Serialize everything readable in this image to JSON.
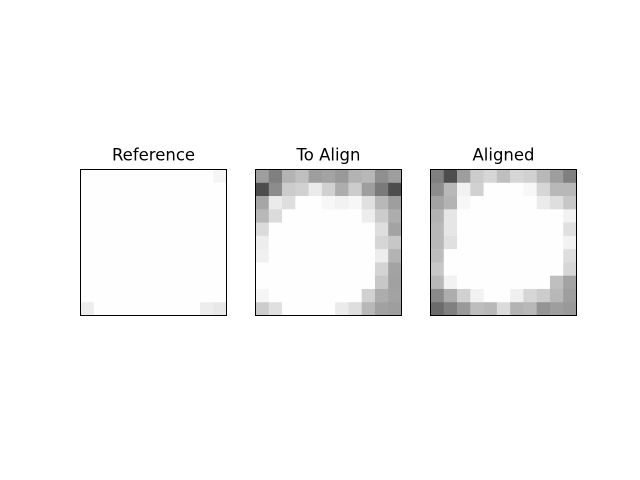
{
  "chart_data": [
    {
      "type": "heatmap",
      "title": "Reference",
      "colormap": "gray",
      "value_range": [
        0,
        1
      ],
      "rows": 11,
      "cols": 11,
      "values": [
        [
          0.995,
          0.995,
          0.995,
          0.995,
          0.995,
          0.995,
          0.995,
          0.995,
          0.995,
          0.995,
          0.96
        ],
        [
          0.995,
          0.995,
          0.995,
          0.995,
          0.995,
          0.995,
          0.995,
          0.995,
          0.995,
          0.995,
          0.995
        ],
        [
          0.995,
          0.995,
          0.995,
          0.995,
          0.995,
          0.995,
          0.995,
          0.995,
          0.995,
          0.995,
          0.995
        ],
        [
          0.995,
          0.995,
          0.995,
          0.995,
          0.995,
          0.995,
          0.995,
          0.995,
          0.995,
          0.995,
          0.995
        ],
        [
          0.995,
          0.995,
          0.995,
          0.995,
          0.995,
          0.995,
          0.995,
          0.995,
          0.995,
          0.995,
          0.995
        ],
        [
          0.995,
          0.995,
          0.995,
          0.995,
          0.995,
          0.995,
          0.995,
          0.995,
          0.995,
          0.995,
          0.995
        ],
        [
          0.995,
          0.995,
          0.995,
          0.995,
          0.995,
          0.995,
          0.995,
          0.995,
          0.995,
          0.995,
          0.995
        ],
        [
          0.995,
          0.995,
          0.995,
          0.995,
          0.995,
          0.995,
          0.995,
          0.995,
          0.995,
          0.995,
          0.995
        ],
        [
          0.995,
          0.995,
          0.995,
          0.995,
          0.995,
          0.995,
          0.995,
          0.995,
          0.995,
          0.995,
          0.995
        ],
        [
          0.995,
          0.995,
          0.995,
          0.995,
          0.995,
          0.995,
          0.995,
          0.995,
          0.995,
          0.995,
          0.995
        ],
        [
          0.93,
          0.995,
          0.995,
          0.995,
          0.995,
          0.995,
          0.995,
          0.995,
          0.995,
          0.93,
          0.91
        ]
      ]
    },
    {
      "type": "heatmap",
      "title": "To Align",
      "colormap": "gray",
      "value_range": [
        0,
        1
      ],
      "rows": 11,
      "cols": 11,
      "values": [
        [
          0.62,
          0.5,
          0.7,
          0.75,
          0.62,
          0.64,
          0.6,
          0.7,
          0.72,
          0.56,
          0.62
        ],
        [
          0.3,
          0.55,
          0.8,
          0.82,
          0.92,
          0.82,
          0.68,
          0.8,
          0.62,
          0.48,
          0.3
        ],
        [
          0.65,
          0.92,
          0.87,
          0.995,
          0.995,
          0.97,
          0.95,
          0.97,
          0.88,
          0.72,
          0.62
        ],
        [
          0.72,
          0.86,
          0.995,
          0.995,
          0.995,
          0.995,
          0.995,
          0.995,
          0.93,
          0.8,
          0.68
        ],
        [
          0.86,
          0.995,
          0.995,
          0.995,
          0.995,
          0.995,
          0.995,
          0.995,
          0.995,
          0.87,
          0.64
        ],
        [
          0.93,
          0.995,
          0.995,
          0.995,
          0.995,
          0.995,
          0.995,
          0.995,
          0.995,
          0.84,
          0.78
        ],
        [
          0.94,
          0.995,
          0.995,
          0.995,
          0.995,
          0.995,
          0.995,
          0.995,
          0.995,
          0.93,
          0.7
        ],
        [
          0.995,
          0.995,
          0.995,
          0.995,
          0.995,
          0.995,
          0.995,
          0.995,
          0.995,
          0.83,
          0.64
        ],
        [
          0.995,
          0.995,
          0.995,
          0.995,
          0.995,
          0.995,
          0.995,
          0.995,
          0.995,
          0.78,
          0.63
        ],
        [
          0.96,
          0.995,
          0.995,
          0.995,
          0.995,
          0.995,
          0.995,
          0.995,
          0.82,
          0.68,
          0.64
        ],
        [
          0.8,
          0.88,
          0.995,
          0.995,
          0.995,
          0.995,
          0.92,
          0.87,
          0.72,
          0.63,
          0.62
        ]
      ]
    },
    {
      "type": "heatmap",
      "title": "Aligned",
      "colormap": "gray",
      "value_range": [
        0,
        1
      ],
      "rows": 11,
      "cols": 11,
      "values": [
        [
          0.5,
          0.3,
          0.62,
          0.8,
          0.84,
          0.75,
          0.84,
          0.82,
          0.72,
          0.62,
          0.5
        ],
        [
          0.55,
          0.72,
          0.95,
          0.82,
          0.995,
          0.995,
          0.995,
          0.97,
          0.84,
          0.72,
          0.72
        ],
        [
          0.64,
          0.7,
          0.97,
          0.995,
          0.995,
          0.995,
          0.995,
          0.995,
          0.92,
          0.87,
          0.78
        ],
        [
          0.7,
          0.9,
          0.995,
          0.995,
          0.995,
          0.995,
          0.995,
          0.995,
          0.995,
          0.995,
          0.95
        ],
        [
          0.72,
          0.9,
          0.995,
          0.995,
          0.995,
          0.995,
          0.995,
          0.995,
          0.995,
          0.995,
          0.88
        ],
        [
          0.72,
          0.88,
          0.995,
          0.995,
          0.995,
          0.995,
          0.995,
          0.995,
          0.995,
          0.995,
          0.95
        ],
        [
          0.74,
          0.995,
          0.995,
          0.995,
          0.995,
          0.995,
          0.995,
          0.995,
          0.995,
          0.995,
          0.87
        ],
        [
          0.78,
          0.995,
          0.995,
          0.995,
          0.995,
          0.995,
          0.995,
          0.995,
          0.995,
          0.995,
          0.84
        ],
        [
          0.72,
          0.95,
          0.995,
          0.995,
          0.995,
          0.995,
          0.995,
          0.995,
          0.995,
          0.75,
          0.64
        ],
        [
          0.54,
          0.68,
          0.82,
          0.95,
          0.995,
          0.995,
          0.94,
          0.84,
          0.8,
          0.72,
          0.62
        ],
        [
          0.42,
          0.5,
          0.6,
          0.74,
          0.72,
          0.86,
          0.7,
          0.72,
          0.58,
          0.62,
          0.6
        ]
      ]
    }
  ]
}
